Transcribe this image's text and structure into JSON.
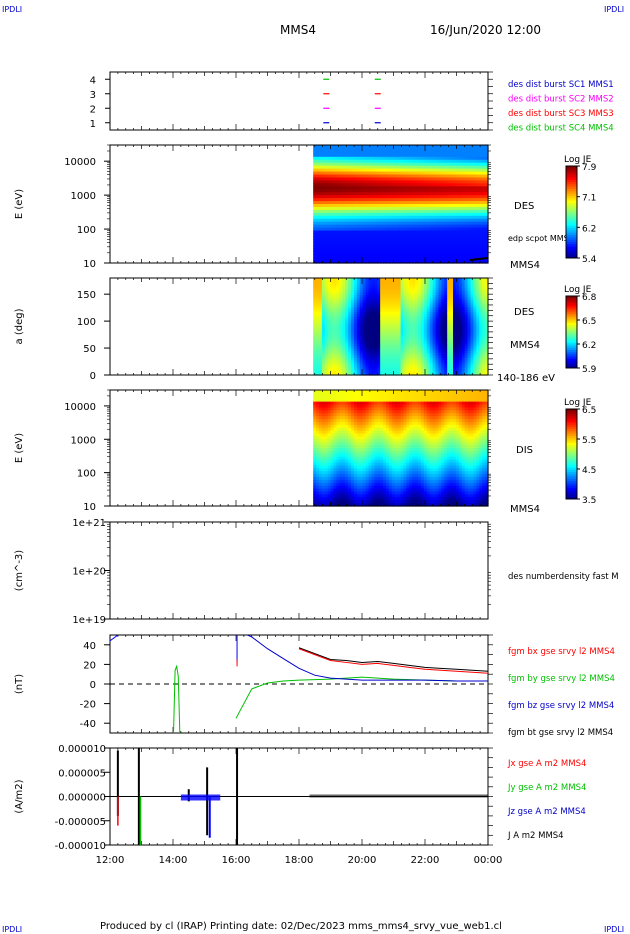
{
  "header": {
    "corner_left_top": "IPDLI",
    "corner_right_top": "IPDLI",
    "corner_left_bottom": "IPDLI",
    "corner_right_bottom": "IPDLI",
    "spacecraft": "MMS4",
    "datetime": "16/Jun/2020 12:00"
  },
  "footer": {
    "text": "Produced by cl (IRAP)   Printing date: 02/Dec/2023   mms_mms4_srvy_vue_web1.cl"
  },
  "colors": {
    "black": "#000000",
    "red": "#ff0000",
    "green": "#00c000",
    "blue": "#0000ff",
    "magenta": "#ff00ff",
    "legend_blue": "#0000cc"
  },
  "chart_data": [
    {
      "type": "scatter",
      "panel": "burst",
      "ylim": [
        0.5,
        4.5
      ],
      "yticks": [
        "1",
        "2",
        "3",
        "4"
      ],
      "legend": [
        "des dist burst SC1 MMS1",
        "des dist burst SC2 MMS2",
        "des dist burst SC3 MMS3",
        "des dist burst SC4 MMS4"
      ],
      "legend_colors": [
        "#0000cc",
        "#ff00ff",
        "#ff0000",
        "#00c000"
      ],
      "series": [
        {
          "level": 1,
          "x": [
            "18:52",
            "20:30"
          ]
        },
        {
          "level": 2,
          "x": [
            "18:52",
            "20:30"
          ]
        },
        {
          "level": 3,
          "x": [
            "18:52",
            "20:30"
          ]
        },
        {
          "level": 4,
          "x": [
            "18:52",
            "20:30"
          ]
        }
      ]
    },
    {
      "type": "heatmap",
      "panel": "des-energy",
      "ylabel": "E (eV)",
      "yscale": "log",
      "ylim": [
        10,
        30000
      ],
      "yticks": [
        "10",
        "100",
        "1000",
        "10000"
      ],
      "label": "DES",
      "side_label": "edp scpot MMS4",
      "bottom_label": "MMS4",
      "colorbar": {
        "title": "Log JE",
        "ticks": [
          "7.9",
          "7.1",
          "6.2",
          "5.4"
        ]
      },
      "data_start": "18:27"
    },
    {
      "type": "heatmap",
      "panel": "des-pitch",
      "ylabel": "a (deg)",
      "ylim": [
        0,
        180
      ],
      "yticks": [
        "0",
        "50",
        "100",
        "150"
      ],
      "label": "DES",
      "label2": "MMS4",
      "bottom_label": "140-186 eV",
      "colorbar": {
        "title": "Log JE",
        "ticks": [
          "6.8",
          "6.5",
          "6.2",
          "5.9"
        ]
      },
      "data_start": "18:27"
    },
    {
      "type": "heatmap",
      "panel": "dis-energy",
      "ylabel": "E (eV)",
      "yscale": "log",
      "ylim": [
        10,
        30000
      ],
      "yticks": [
        "10",
        "100",
        "1000",
        "10000"
      ],
      "label": "DIS",
      "bottom_label": "MMS4",
      "colorbar": {
        "title": "Log JE",
        "ticks": [
          "6.5",
          "5.5",
          "4.5",
          "3.5"
        ]
      },
      "data_start": "18:27"
    },
    {
      "type": "line",
      "panel": "density",
      "ylabel": "(cm^-3)",
      "yscale": "log",
      "yticks": [
        "1e+19",
        "1e+20",
        "1e+21"
      ],
      "legend": [
        "des numberdensity fast M"
      ]
    },
    {
      "type": "line",
      "panel": "fgm",
      "ylabel": "(nT)",
      "ylim": [
        -50,
        50
      ],
      "yticks": [
        "-40",
        "-20",
        "0",
        "20",
        "40"
      ],
      "legend": [
        "fgm bx gse srvy l2 MMS4",
        "fgm by gse srvy l2 MMS4",
        "fgm bz gse srvy l2 MMS4",
        "fgm bt gse srvy l2 MMS4"
      ],
      "legend_colors": [
        "#ff0000",
        "#00c000",
        "#0000cc",
        "#000000"
      ],
      "series": [
        {
          "name": "fgm bt gse srvy l2 MMS4",
          "x": [
            "18:00",
            "18:30",
            "19:00",
            "19:30",
            "20:00",
            "20:30",
            "21:00",
            "21:30",
            "22:00",
            "22:30",
            "23:00",
            "23:30",
            "24:00"
          ],
          "values": [
            37,
            31,
            25,
            24,
            22,
            23,
            21,
            19,
            17,
            16,
            15,
            14,
            13
          ]
        },
        {
          "name": "fgm bx gse srvy l2 MMS4",
          "x": [
            "18:00",
            "18:30",
            "19:00",
            "19:30",
            "20:00",
            "20:30",
            "21:00",
            "21:30",
            "22:00",
            "22:30",
            "23:00",
            "23:30",
            "24:00"
          ],
          "values": [
            36,
            30,
            24,
            22,
            20,
            21,
            19,
            17,
            15,
            14,
            13,
            12,
            11
          ]
        },
        {
          "name": "fgm by gse srvy l2 MMS4",
          "x": [
            "16:00",
            "16:30",
            "17:00",
            "17:30",
            "18:00",
            "19:00",
            "20:00",
            "21:00",
            "22:00",
            "23:00",
            "24:00"
          ],
          "values": [
            -35,
            -5,
            1,
            3,
            4,
            5,
            7,
            5,
            4,
            3,
            3
          ]
        },
        {
          "name": "fgm bz gse srvy l2 MMS4",
          "x": [
            "16:00",
            "16:30",
            "17:00",
            "17:30",
            "18:00",
            "18:30",
            "19:00",
            "19:30",
            "20:00",
            "21:00",
            "22:00",
            "23:00",
            "24:00"
          ],
          "values": [
            55,
            48,
            36,
            26,
            16,
            9,
            6,
            5,
            4,
            4,
            4,
            3,
            3
          ]
        }
      ]
    },
    {
      "type": "line",
      "panel": "current",
      "ylabel": "(A/m2)",
      "ylim": [
        -1e-05,
        1e-05
      ],
      "yticks": [
        "-0.000010",
        "-0.000005",
        "0.000000",
        "0.000005",
        "0.000010"
      ],
      "xticks": [
        "12:00",
        "14:00",
        "16:00",
        "18:00",
        "20:00",
        "22:00",
        "00:00"
      ],
      "legend": [
        "Jx gse A m2 MMS4",
        "Jy gse A m2 MMS4",
        "Jz gse A m2 MMS4",
        "J A m2 MMS4"
      ],
      "legend_colors": [
        "#ff0000",
        "#00c000",
        "#0000cc",
        "#000000"
      ]
    }
  ]
}
